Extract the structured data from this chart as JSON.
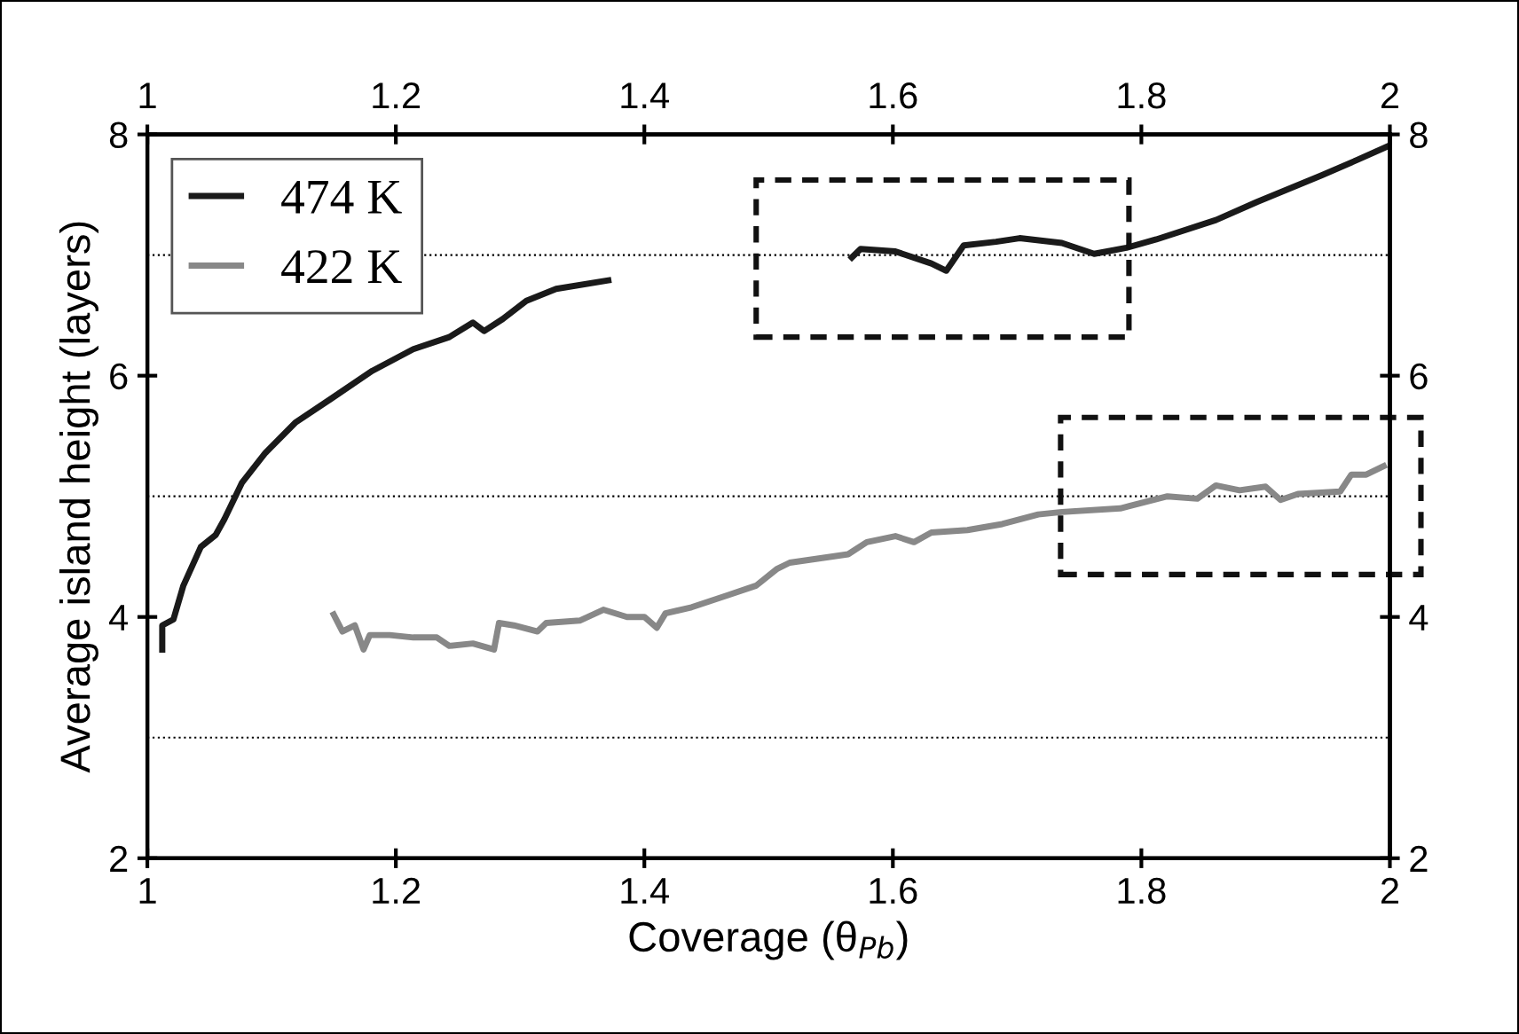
{
  "chart_data": {
    "type": "line",
    "xlabel": "Coverage (θ$_{Pb}$)",
    "ylabel": "Average island height (layers)",
    "xlim": [
      1,
      2
    ],
    "xticks": [
      1,
      1.2,
      1.4,
      1.6,
      1.8,
      2
    ],
    "x2lim": [
      1,
      2
    ],
    "x2ticks": [
      1,
      1.2,
      1.4,
      1.6,
      1.8,
      2
    ],
    "ylim": [
      2,
      8
    ],
    "yticks": [
      2,
      4,
      6,
      8
    ],
    "y2lim": [
      2,
      8
    ],
    "y2ticks": [
      2,
      4,
      6,
      8
    ],
    "grid": false,
    "legend": "top left",
    "line_style": "solid",
    "marker": "none",
    "ref_lines": [
      {
        "axis": "y",
        "value": 7,
        "color": "#000000",
        "line_style": "dotted"
      },
      {
        "axis": "y",
        "value": 5,
        "color": "#000000",
        "line_style": "dotted"
      },
      {
        "axis": "y",
        "value": 3,
        "color": "#000000",
        "line_style": "dotted"
      }
    ],
    "series": [
      {
        "name": "474 K",
        "color": "#1a1a1a",
        "x": [
          1.012,
          1.012,
          1.021,
          1.029,
          1.043,
          1.055,
          1.062,
          1.076,
          1.095,
          1.119,
          1.148,
          1.181,
          1.214,
          1.243,
          1.262,
          1.271,
          1.286,
          1.305,
          1.329,
          1.371,
          1.47,
          1.567,
          1.574,
          1.602,
          1.631,
          1.643,
          1.657,
          1.683,
          1.702,
          1.736,
          1.762,
          1.788,
          1.812,
          1.86,
          1.893,
          1.945,
          1.974,
          1.998
        ],
        "values": [
          3.73,
          3.93,
          3.98,
          4.26,
          4.58,
          4.68,
          4.81,
          5.11,
          5.36,
          5.61,
          5.81,
          6.04,
          6.22,
          6.32,
          6.44,
          6.37,
          6.47,
          6.62,
          6.72,
          6.79,
          null,
          6.98,
          7.05,
          7.03,
          6.93,
          6.87,
          7.08,
          7.11,
          7.14,
          7.1,
          7.01,
          7.06,
          7.13,
          7.29,
          7.44,
          7.66,
          7.79,
          7.9
        ]
      },
      {
        "name": "422 K",
        "color": "#888888",
        "x": [
          1.15,
          1.157,
          1.167,
          1.174,
          1.179,
          1.195,
          1.214,
          1.233,
          1.243,
          1.262,
          1.279,
          1.283,
          1.295,
          1.314,
          1.321,
          1.348,
          1.367,
          1.386,
          1.4,
          1.41,
          1.417,
          1.438,
          1.467,
          1.49,
          1.507,
          1.517,
          1.564,
          1.579,
          1.602,
          1.617,
          1.631,
          1.66,
          1.688,
          1.717,
          1.736,
          1.783,
          1.821,
          1.845,
          1.86,
          1.879,
          1.9,
          1.912,
          1.926,
          1.96,
          1.969,
          1.981,
          1.995
        ],
        "values": [
          4.02,
          3.88,
          3.93,
          3.73,
          3.85,
          3.85,
          3.83,
          3.83,
          3.76,
          3.78,
          3.73,
          3.95,
          3.93,
          3.88,
          3.95,
          3.97,
          4.06,
          4.0,
          4.0,
          3.91,
          4.03,
          4.08,
          4.18,
          4.26,
          4.4,
          4.45,
          4.52,
          4.62,
          4.67,
          4.62,
          4.7,
          4.72,
          4.77,
          4.85,
          4.87,
          4.9,
          5.0,
          4.98,
          5.09,
          5.05,
          5.08,
          4.97,
          5.02,
          5.04,
          5.18,
          5.18,
          5.25
        ]
      }
    ]
  }
}
